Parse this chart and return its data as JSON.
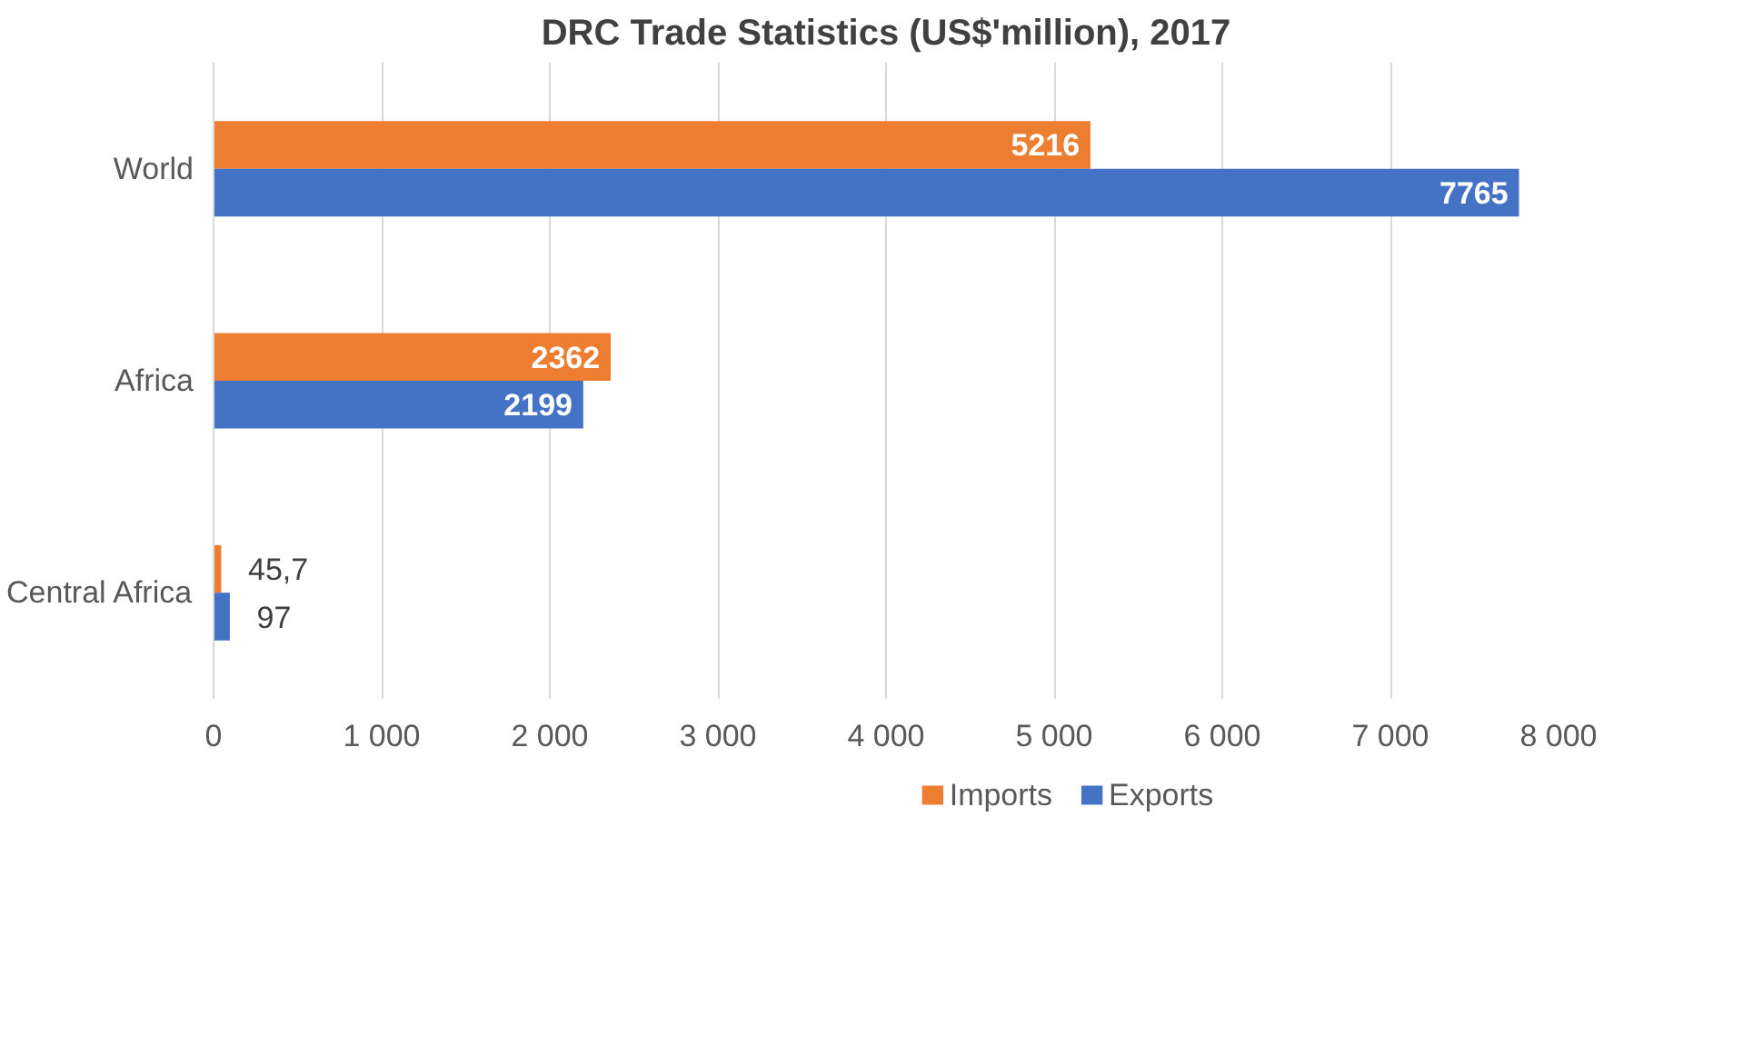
{
  "chart_data": {
    "type": "bar",
    "orientation": "horizontal",
    "title": "DRC Trade Statistics (US$'million), 2017",
    "categories": [
      "World",
      "Africa",
      "Central Africa"
    ],
    "series": [
      {
        "name": "Imports",
        "color": "#ed7d31",
        "values": [
          5216,
          2362,
          45.7
        ],
        "value_labels": [
          "5216",
          "2362",
          "45,7"
        ]
      },
      {
        "name": "Exports",
        "color": "#4472c4",
        "values": [
          7765,
          2199,
          97
        ],
        "value_labels": [
          "7765",
          "2199",
          "97"
        ]
      }
    ],
    "xlim": [
      0,
      8000
    ],
    "xticks": [
      0,
      {
        "value": 1000,
        "label": "1 000"
      },
      {
        "value": 2000,
        "label": "2 000"
      },
      {
        "value": 3000,
        "label": "3 000"
      },
      {
        "value": 4000,
        "label": "4 000"
      },
      {
        "value": 5000,
        "label": "5 000"
      },
      {
        "value": 6000,
        "label": "6 000"
      },
      {
        "value": 7000,
        "label": "7 000"
      },
      {
        "value": 8000,
        "label": "8 000"
      }
    ],
    "grid": "x",
    "legend": "bottom"
  }
}
